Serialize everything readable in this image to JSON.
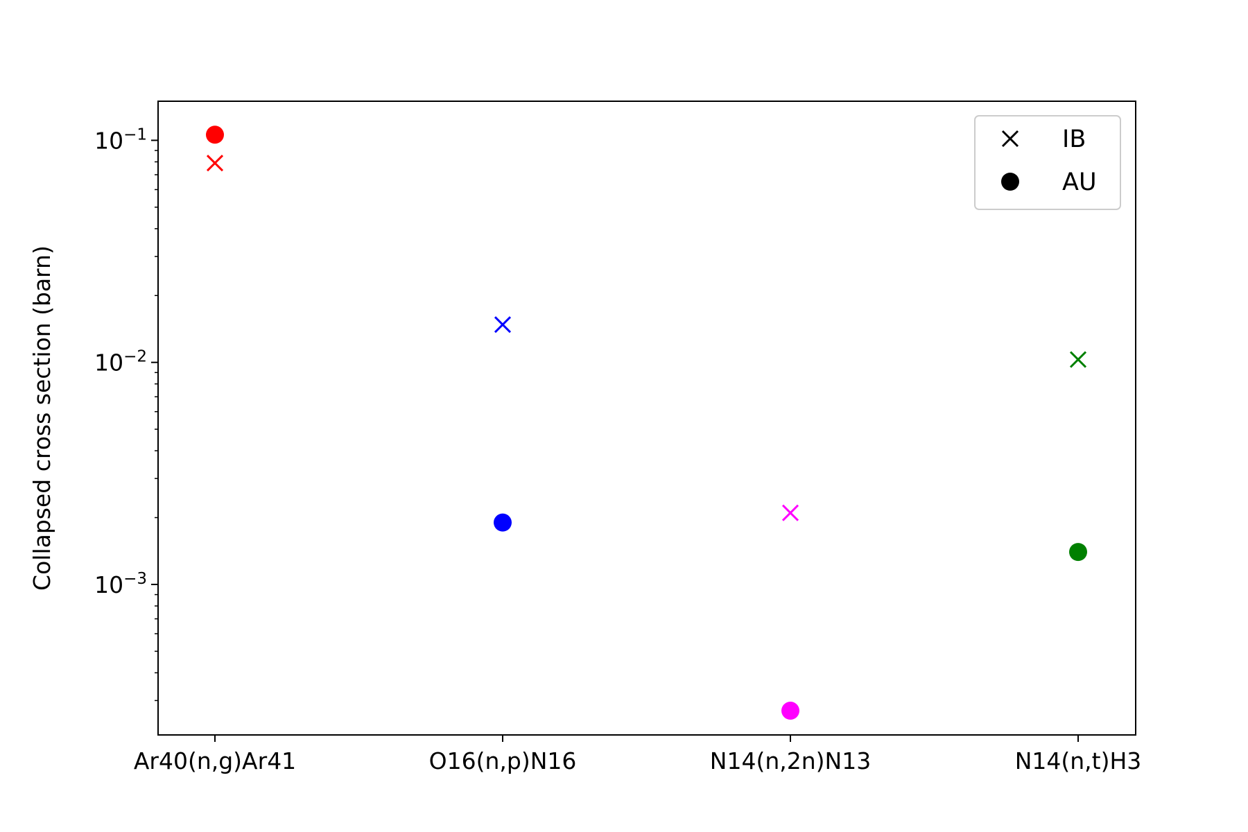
{
  "chart_data": {
    "type": "scatter",
    "title": "",
    "xlabel": "",
    "ylabel": "Collapsed cross section (barn)",
    "yscale": "log",
    "ylim": [
      0.00021,
      0.15
    ],
    "categories": [
      "Ar40(n,g)Ar41",
      "O16(n,p)N16",
      "N14(n,2n)N13",
      "N14(n,t)H3"
    ],
    "point_colors": [
      "#ff0000",
      "#0000ff",
      "#ff00ff",
      "#008000"
    ],
    "series": [
      {
        "name": "IB",
        "marker": "x",
        "values": [
          0.079,
          0.0148,
          0.0021,
          0.0103
        ]
      },
      {
        "name": "AU",
        "marker": "o",
        "values": [
          0.106,
          0.0019,
          0.00027,
          0.0014
        ]
      }
    ],
    "yticks": [
      {
        "value": 0.1,
        "base": "10",
        "exp": "−1"
      },
      {
        "value": 0.01,
        "base": "10",
        "exp": "−2"
      },
      {
        "value": 0.001,
        "base": "10",
        "exp": "−3"
      }
    ],
    "legend": {
      "location": "top-right",
      "marker_color": "#000000"
    },
    "grid": false
  }
}
